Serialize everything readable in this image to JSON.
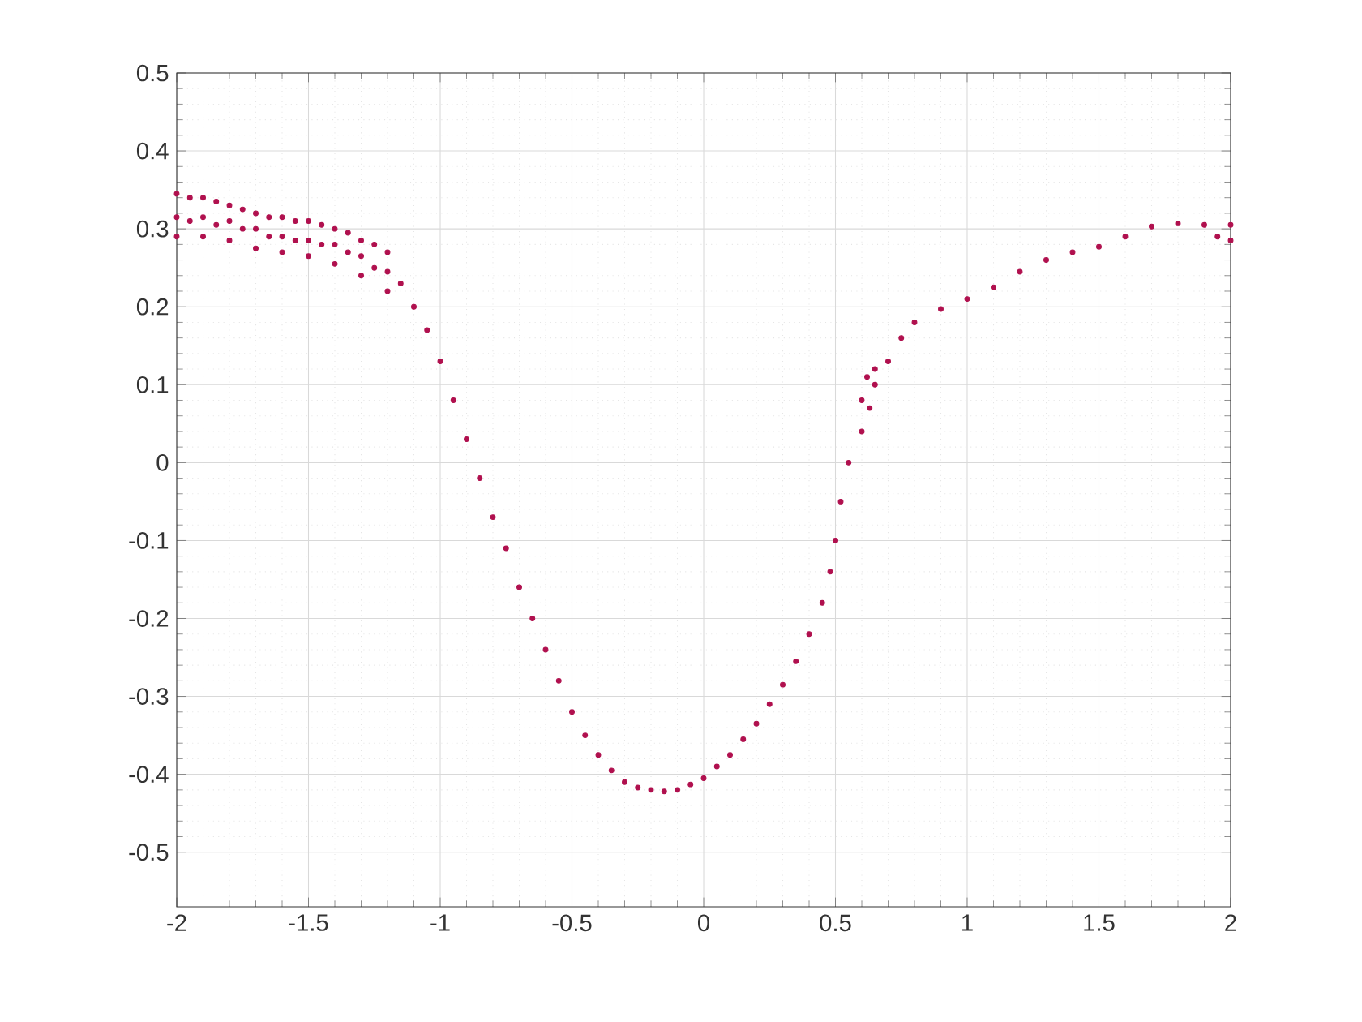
{
  "chart_data": {
    "type": "scatter",
    "grid": true,
    "xlim": [
      -2,
      2
    ],
    "ylim": [
      -0.57,
      0.5
    ],
    "xticks": [
      -2,
      -1.5,
      -1,
      -0.5,
      0,
      0.5,
      1,
      1.5,
      2
    ],
    "yticks": [
      -0.5,
      -0.4,
      -0.3,
      -0.2,
      -0.1,
      0,
      0.1,
      0.2,
      0.3,
      0.4,
      0.5
    ],
    "series": [
      {
        "color": "#b0104e",
        "x": [
          -2,
          -2,
          -2,
          -1.95,
          -1.95,
          -1.9,
          -1.9,
          -1.9,
          -1.85,
          -1.85,
          -1.8,
          -1.8,
          -1.8,
          -1.75,
          -1.75,
          -1.7,
          -1.7,
          -1.7,
          -1.65,
          -1.65,
          -1.6,
          -1.6,
          -1.6,
          -1.55,
          -1.55,
          -1.5,
          -1.5,
          -1.5,
          -1.45,
          -1.45,
          -1.4,
          -1.4,
          -1.4,
          -1.35,
          -1.35,
          -1.3,
          -1.3,
          -1.3,
          -1.25,
          -1.25,
          -1.2,
          -1.2,
          -1.2,
          -1.15,
          -1.1,
          -1.05,
          -1.0,
          -0.95,
          -0.9,
          -0.85,
          -0.8,
          -0.75,
          -0.7,
          -0.65,
          -0.6,
          -0.55,
          -0.5,
          -0.45,
          -0.4,
          -0.35,
          -0.3,
          -0.25,
          -0.2,
          -0.15,
          -0.1,
          -0.05,
          0,
          0.05,
          0.1,
          0.15,
          0.2,
          0.25,
          0.3,
          0.35,
          0.4,
          0.45,
          0.48,
          0.5,
          0.52,
          0.55,
          0.6,
          0.6,
          0.62,
          0.63,
          0.65,
          0.65,
          0.7,
          0.75,
          0.8,
          0.9,
          1.0,
          1.1,
          1.2,
          1.3,
          1.4,
          1.5,
          1.6,
          1.7,
          1.8,
          1.9,
          1.95,
          2.0,
          2.0
        ],
        "values": [
          0.345,
          0.315,
          0.29,
          0.34,
          0.31,
          0.34,
          0.315,
          0.29,
          0.335,
          0.305,
          0.33,
          0.31,
          0.285,
          0.325,
          0.3,
          0.32,
          0.3,
          0.275,
          0.315,
          0.29,
          0.315,
          0.29,
          0.27,
          0.31,
          0.285,
          0.31,
          0.285,
          0.265,
          0.305,
          0.28,
          0.3,
          0.28,
          0.255,
          0.295,
          0.27,
          0.285,
          0.265,
          0.24,
          0.28,
          0.25,
          0.27,
          0.245,
          0.22,
          0.23,
          0.2,
          0.17,
          0.13,
          0.08,
          0.03,
          -0.02,
          -0.07,
          -0.11,
          -0.16,
          -0.2,
          -0.24,
          -0.28,
          -0.32,
          -0.35,
          -0.375,
          -0.395,
          -0.41,
          -0.417,
          -0.42,
          -0.422,
          -0.42,
          -0.413,
          -0.405,
          -0.39,
          -0.375,
          -0.355,
          -0.335,
          -0.31,
          -0.285,
          -0.255,
          -0.22,
          -0.18,
          -0.14,
          -0.1,
          -0.05,
          0.0,
          0.04,
          0.08,
          0.11,
          0.07,
          0.1,
          0.12,
          0.13,
          0.16,
          0.18,
          0.197,
          0.21,
          0.225,
          0.245,
          0.26,
          0.27,
          0.277,
          0.29,
          0.303,
          0.307,
          0.305,
          0.29,
          0.305,
          0.285
        ]
      }
    ]
  }
}
